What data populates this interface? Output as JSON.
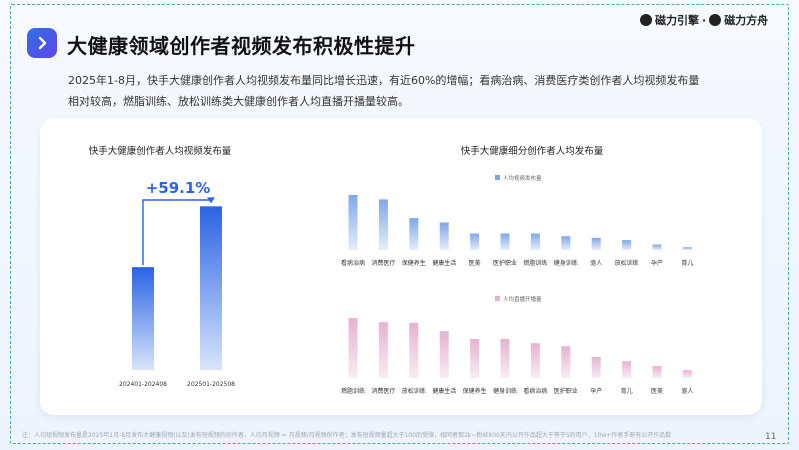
{
  "header": {
    "title": "大健康领域创作者视频发布积极性提升",
    "logo_left": "磁力引擎",
    "logo_sep": "·",
    "logo_right": "磁力方舟"
  },
  "description": "2025年1-8月，快手大健康创作者人均视频发布量同比增长迅速，有近60%的增幅；看病治病、消费医疗类创作者人均视频发布量相对较高，燃脂训练、放松训练类大健康创作者人均直播开播量较高。",
  "footer": {
    "note": "注：人均短视频发布量是2025年1月-8月发布大健康视频(以及)发布短视频的创作者，人均月视频 = 月视频/月视频创作者；发布短视频量超大于100的受限，相同者取2k~粉丝600天内公开作品超大于等于5的用户，10w+作者手册有公开作品数",
    "page_number": "11"
  },
  "chart_data": [
    {
      "type": "bar",
      "title": "快手大健康创作者人均视频发布量",
      "categories": [
        "202401-202408",
        "202501-202508"
      ],
      "values": [
        100,
        159.1
      ],
      "annotation": "+59.1%",
      "ylim": [
        0,
        175
      ],
      "colors": [
        "#2f6be6",
        "#3a78ee"
      ]
    },
    {
      "type": "bar",
      "title": "快手大健康细分创作者人均发布量",
      "legend": "人均视频发布量",
      "categories": [
        "看病治病",
        "消费医疗",
        "保健养生",
        "健康生活",
        "医美",
        "医护职业",
        "燃脂训练",
        "健身训练",
        "驱人",
        "放松训练",
        "孕产",
        "育儿"
      ],
      "values": [
        100,
        92,
        58,
        50,
        30,
        30,
        30,
        25,
        22,
        18,
        10,
        5
      ],
      "ylim": [
        0,
        100
      ],
      "color": "#8fb3ea"
    },
    {
      "type": "bar",
      "legend": "人均直播开播量",
      "categories": [
        "燃脂训练",
        "消费医疗",
        "放松训练",
        "健康生活",
        "保健养生",
        "健身训练",
        "看病治病",
        "医护职业",
        "孕产",
        "育儿",
        "医美",
        "驱人"
      ],
      "values": [
        100,
        93,
        92,
        78,
        65,
        65,
        58,
        53,
        35,
        28,
        20,
        13
      ],
      "ylim": [
        0,
        100
      ],
      "color": "#e9bfd6"
    }
  ]
}
